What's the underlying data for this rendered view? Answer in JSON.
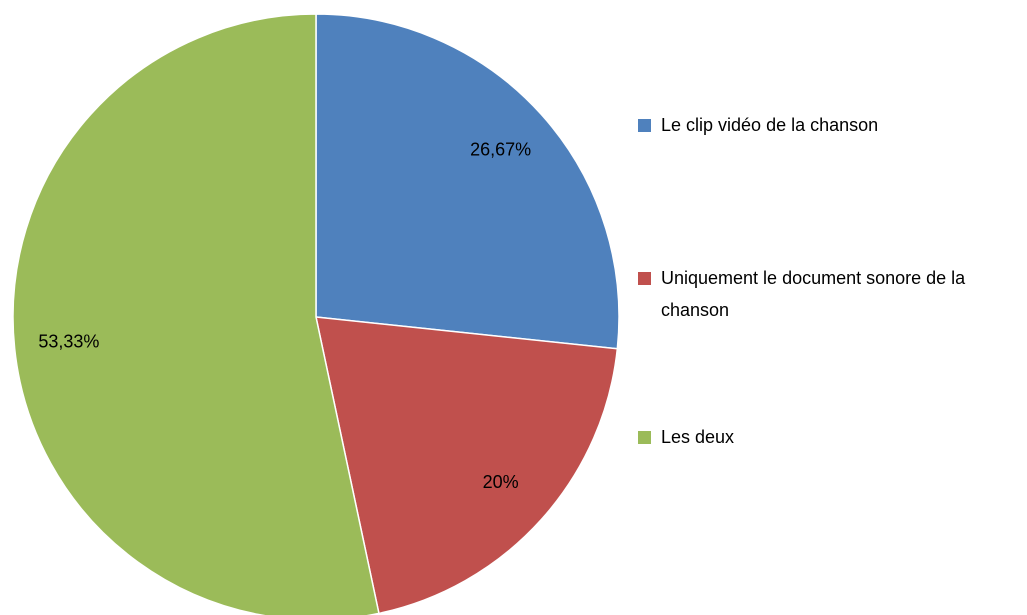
{
  "chart_data": {
    "type": "pie",
    "categories": [
      "Le clip vidéo de la chanson",
      "Uniquement le document sonore de la chanson",
      "Les deux"
    ],
    "values": [
      26.67,
      20,
      53.33
    ],
    "value_labels": [
      "26,67%",
      "20%",
      "53,33%"
    ],
    "colors": [
      "#4f81bd",
      "#c0504d",
      "#9bbb59"
    ]
  }
}
